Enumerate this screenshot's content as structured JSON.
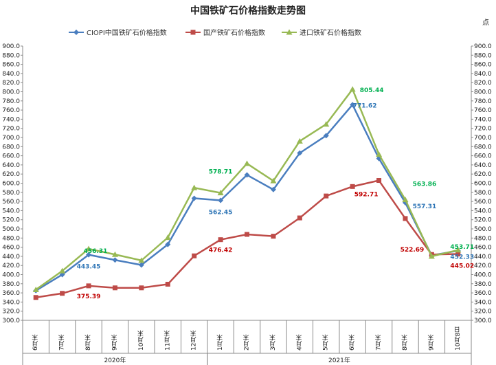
{
  "chart_data": {
    "type": "line",
    "title": "中国铁矿石价格指数走势图",
    "unit": "点",
    "ylim": [
      300,
      900
    ],
    "ytick_step": 20,
    "categories": [
      "6月末",
      "7月末",
      "8月末",
      "9月末",
      "10月末",
      "11月末",
      "12月末",
      "1月末",
      "2月末",
      "3月末",
      "4月末",
      "5月末",
      "6月末",
      "7月末",
      "8月末",
      "9月末",
      "10月8日"
    ],
    "years": [
      {
        "label": "2020年",
        "start": 0,
        "end": 6
      },
      {
        "label": "2021年",
        "start": 7,
        "end": 16
      }
    ],
    "legend_position": "top-center",
    "grid": false,
    "series": [
      {
        "name": "CIOPI中国铁矿石价格指数",
        "color": "#4a7ebf",
        "marker": "diamond",
        "values": [
          365,
          400,
          443.45,
          432,
          421,
          466,
          567,
          562.45,
          618,
          586,
          666,
          704,
          771.62,
          654,
          557.31,
          442,
          452.33
        ]
      },
      {
        "name": "国产铁矿石价格指数",
        "color": "#be4b48",
        "marker": "square",
        "values": [
          350,
          359,
          375.39,
          371,
          371,
          379,
          441,
          476.42,
          488,
          484,
          524,
          572,
          592.71,
          606,
          522.69,
          444,
          445.02
        ]
      },
      {
        "name": "进口铁矿石价格指数",
        "color": "#98b954",
        "marker": "triangle",
        "values": [
          367,
          408,
          456.31,
          444,
          431,
          481,
          590,
          578.71,
          643,
          605,
          692,
          729,
          805.44,
          663,
          563.86,
          440,
          453.71
        ]
      }
    ],
    "data_labels": [
      {
        "series": 0,
        "index": 2,
        "text": "443.45",
        "color": "#2e75b6"
      },
      {
        "series": 0,
        "index": 7,
        "text": "562.45",
        "color": "#2e75b6"
      },
      {
        "series": 0,
        "index": 12,
        "text": "771.62",
        "color": "#2e75b6"
      },
      {
        "series": 0,
        "index": 14,
        "text": "557.31",
        "color": "#2e75b6"
      },
      {
        "series": 0,
        "index": 16,
        "text": "452.33",
        "color": "#2e75b6"
      },
      {
        "series": 1,
        "index": 2,
        "text": "375.39",
        "color": "#c00000"
      },
      {
        "series": 1,
        "index": 7,
        "text": "476.42",
        "color": "#c00000"
      },
      {
        "series": 1,
        "index": 12,
        "text": "592.71",
        "color": "#c00000"
      },
      {
        "series": 1,
        "index": 14,
        "text": "522.69",
        "color": "#c00000"
      },
      {
        "series": 1,
        "index": 16,
        "text": "445.02",
        "color": "#c00000"
      },
      {
        "series": 2,
        "index": 2,
        "text": "456.31",
        "color": "#00b050"
      },
      {
        "series": 2,
        "index": 7,
        "text": "578.71",
        "color": "#00b050"
      },
      {
        "series": 2,
        "index": 12,
        "text": "805.44",
        "color": "#00b050"
      },
      {
        "series": 2,
        "index": 14,
        "text": "563.86",
        "color": "#00b050"
      },
      {
        "series": 2,
        "index": 16,
        "text": "453.71",
        "color": "#00b050"
      }
    ]
  }
}
